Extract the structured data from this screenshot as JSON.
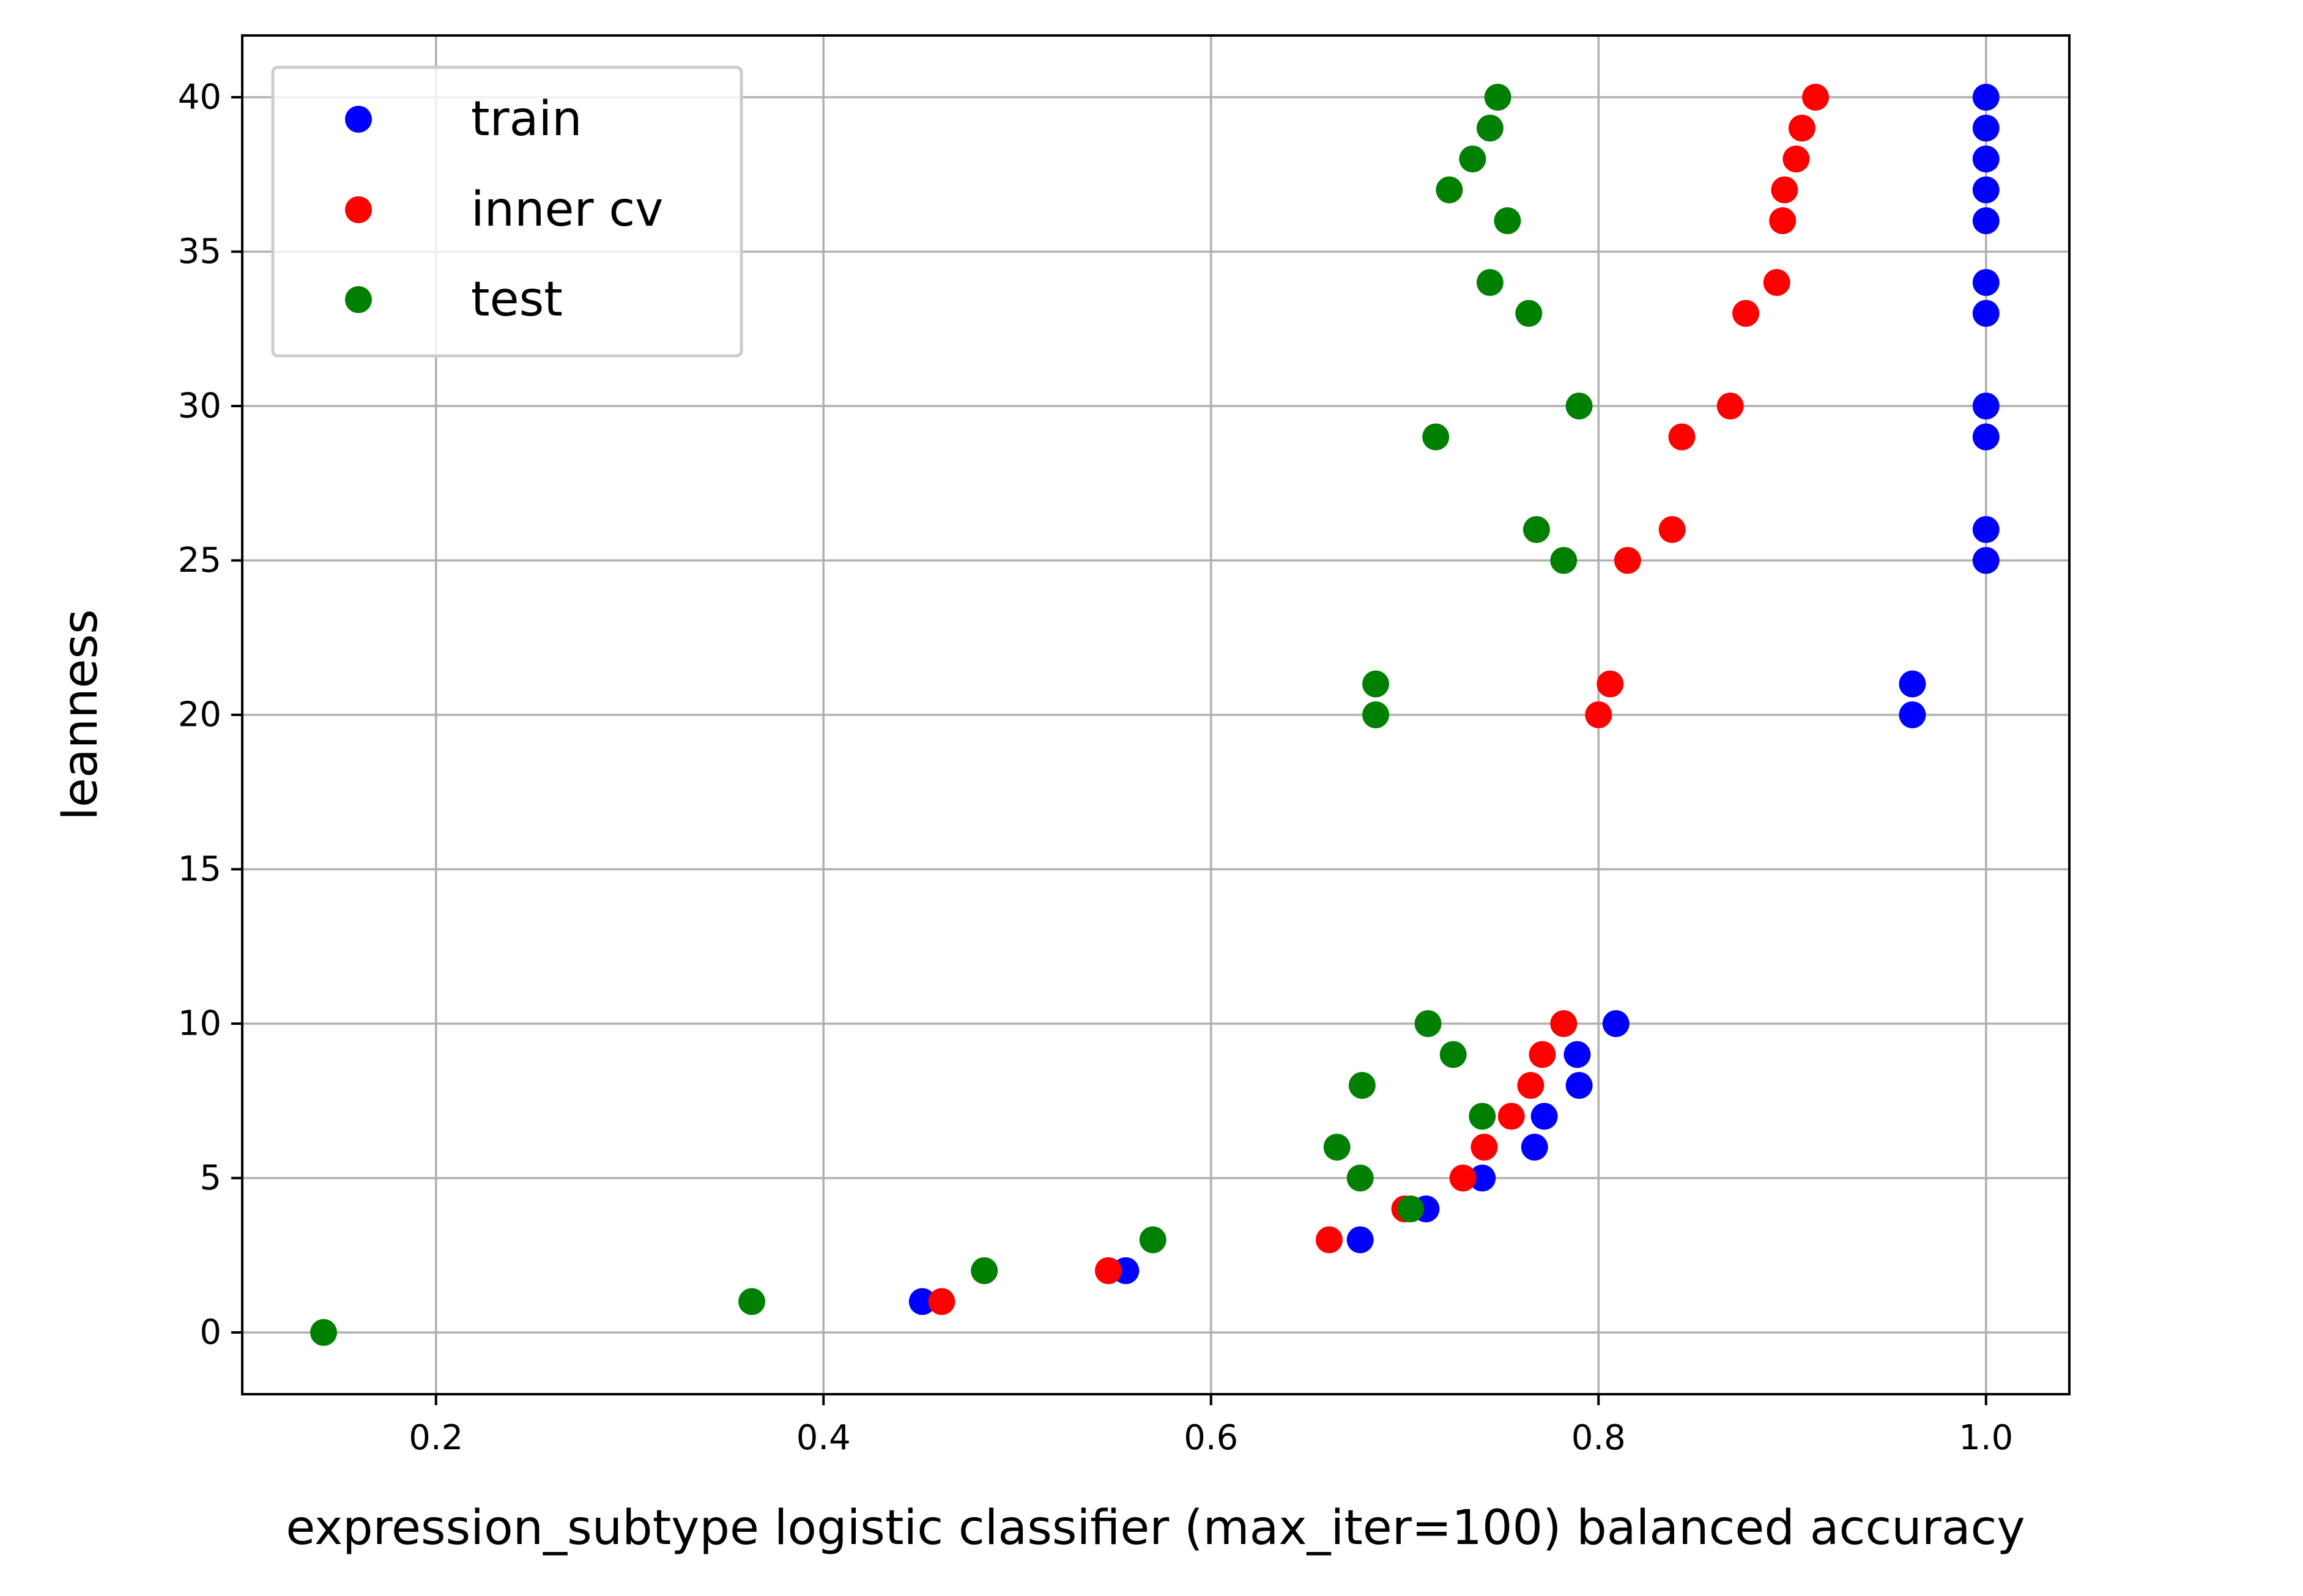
{
  "chart_data": {
    "type": "scatter",
    "title": "",
    "xlabel": "expression_subtype logistic classifier (max_iter=100) balanced accuracy",
    "ylabel": "leanness",
    "xlim": [
      0.1,
      1.043
    ],
    "ylim": [
      -2,
      42
    ],
    "xticks": [
      0.2,
      0.4,
      0.6,
      0.8,
      1.0
    ],
    "xtick_labels": [
      "0.2",
      "0.4",
      "0.6",
      "0.8",
      "1.0"
    ],
    "yticks": [
      0,
      5,
      10,
      15,
      20,
      25,
      30,
      35,
      40
    ],
    "ytick_labels": [
      "0",
      "5",
      "10",
      "15",
      "20",
      "25",
      "30",
      "35",
      "40"
    ],
    "grid": true,
    "legend_position": "top-left",
    "series": [
      {
        "name": "train",
        "color": "#0000ff",
        "points": [
          [
            0.451,
            1
          ],
          [
            0.556,
            2
          ],
          [
            0.677,
            3
          ],
          [
            0.711,
            4
          ],
          [
            0.74,
            5
          ],
          [
            0.767,
            6
          ],
          [
            0.772,
            7
          ],
          [
            0.79,
            8
          ],
          [
            0.789,
            9
          ],
          [
            0.809,
            10
          ],
          [
            0.962,
            20
          ],
          [
            0.962,
            21
          ],
          [
            1.0,
            25
          ],
          [
            1.0,
            26
          ],
          [
            1.0,
            29
          ],
          [
            1.0,
            30
          ],
          [
            1.0,
            33
          ],
          [
            1.0,
            34
          ],
          [
            1.0,
            36
          ],
          [
            1.0,
            37
          ],
          [
            1.0,
            38
          ],
          [
            1.0,
            39
          ],
          [
            1.0,
            40
          ]
        ]
      },
      {
        "name": "inner cv",
        "color": "#ff0000",
        "points": [
          [
            0.461,
            1
          ],
          [
            0.547,
            2
          ],
          [
            0.661,
            3
          ],
          [
            0.7,
            4
          ],
          [
            0.73,
            5
          ],
          [
            0.741,
            6
          ],
          [
            0.755,
            7
          ],
          [
            0.765,
            8
          ],
          [
            0.771,
            9
          ],
          [
            0.782,
            10
          ],
          [
            0.8,
            20
          ],
          [
            0.806,
            21
          ],
          [
            0.815,
            25
          ],
          [
            0.838,
            26
          ],
          [
            0.843,
            29
          ],
          [
            0.868,
            30
          ],
          [
            0.876,
            33
          ],
          [
            0.892,
            34
          ],
          [
            0.895,
            36
          ],
          [
            0.896,
            37
          ],
          [
            0.902,
            38
          ],
          [
            0.905,
            39
          ],
          [
            0.912,
            40
          ]
        ]
      },
      {
        "name": "test",
        "color": "#008000",
        "points": [
          [
            0.142,
            0
          ],
          [
            0.363,
            1
          ],
          [
            0.483,
            2
          ],
          [
            0.57,
            3
          ],
          [
            0.703,
            4
          ],
          [
            0.677,
            5
          ],
          [
            0.665,
            6
          ],
          [
            0.74,
            7
          ],
          [
            0.678,
            8
          ],
          [
            0.725,
            9
          ],
          [
            0.712,
            10
          ],
          [
            0.685,
            20
          ],
          [
            0.685,
            21
          ],
          [
            0.782,
            25
          ],
          [
            0.768,
            26
          ],
          [
            0.716,
            29
          ],
          [
            0.79,
            30
          ],
          [
            0.764,
            33
          ],
          [
            0.744,
            34
          ],
          [
            0.753,
            36
          ],
          [
            0.723,
            37
          ],
          [
            0.735,
            38
          ],
          [
            0.744,
            39
          ],
          [
            0.748,
            40
          ]
        ]
      }
    ]
  }
}
